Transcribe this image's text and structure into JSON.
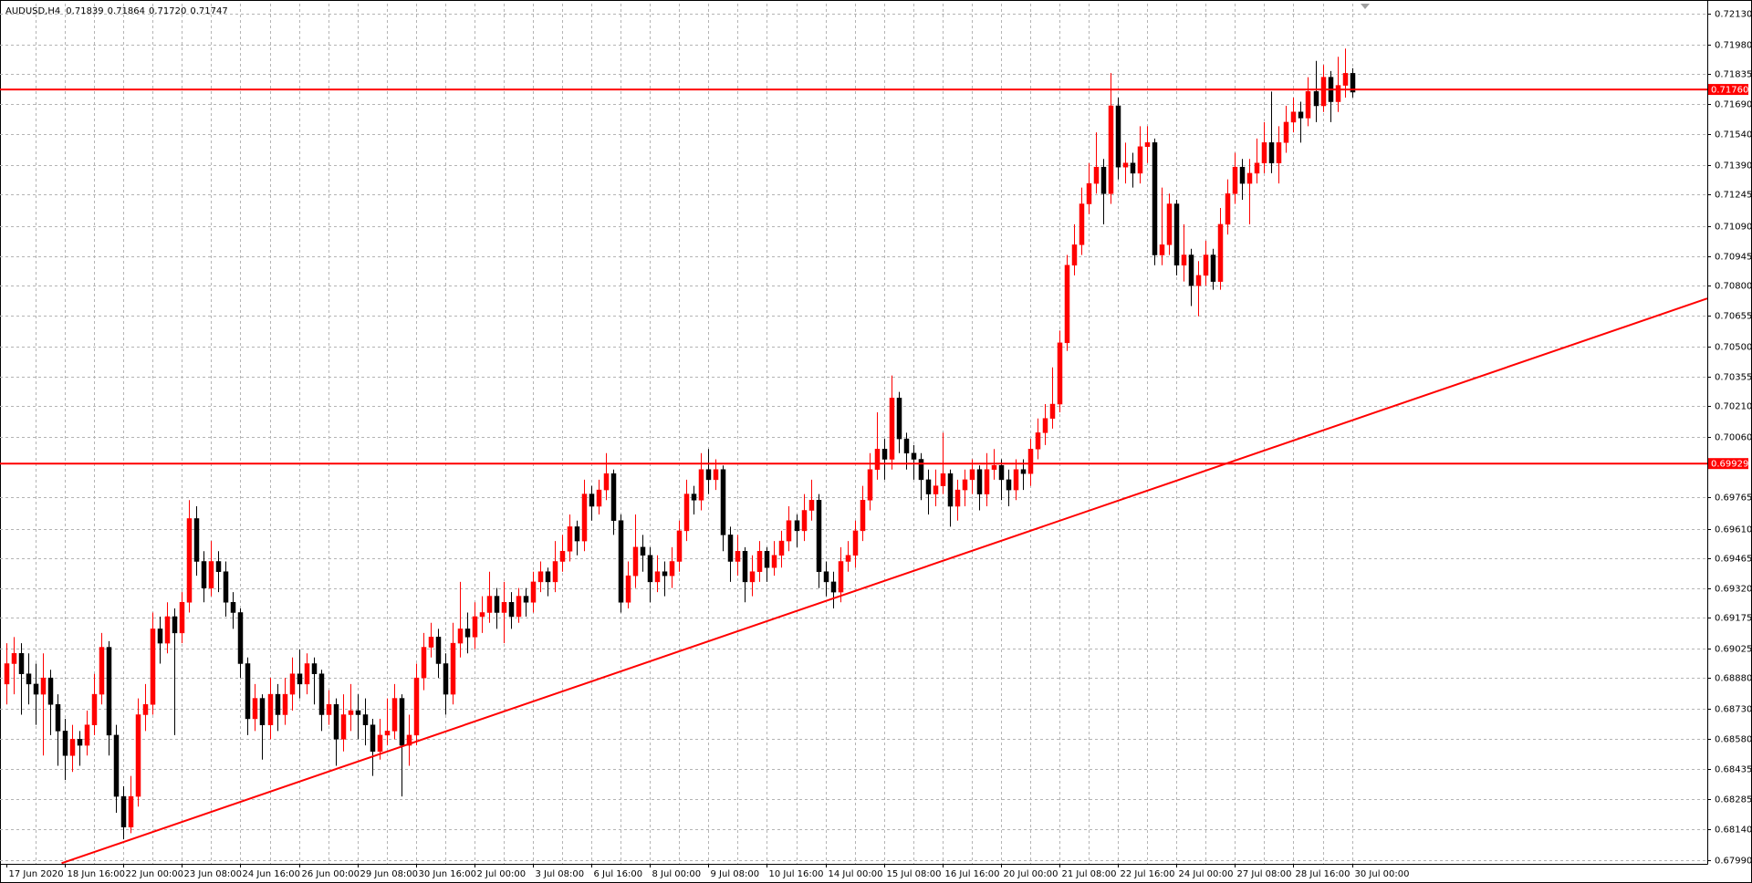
{
  "chart_data": {
    "type": "candlestick",
    "symbol": "AUDUSD,H4",
    "header_labels": [
      "0.71839",
      "0.71864",
      "0.71720",
      "0.71747"
    ],
    "up_color": "#ff0000",
    "down_color": "#000000",
    "grid": true,
    "ylim": [
      0.6797,
      0.7218
    ],
    "yticks": [
      {
        "value": 0.7213,
        "label": "0.72130"
      },
      {
        "value": 0.7198,
        "label": "0.71980"
      },
      {
        "value": 0.71835,
        "label": "0.71835"
      },
      {
        "value": 0.7169,
        "label": "0.71690"
      },
      {
        "value": 0.7154,
        "label": "0.71540"
      },
      {
        "value": 0.7139,
        "label": "0.71390"
      },
      {
        "value": 0.71245,
        "label": "0.71245"
      },
      {
        "value": 0.7109,
        "label": "0.71090"
      },
      {
        "value": 0.70945,
        "label": "0.70945"
      },
      {
        "value": 0.708,
        "label": "0.70800"
      },
      {
        "value": 0.70655,
        "label": "0.70655"
      },
      {
        "value": 0.705,
        "label": "0.70500"
      },
      {
        "value": 0.70355,
        "label": "0.70355"
      },
      {
        "value": 0.7021,
        "label": "0.70210"
      },
      {
        "value": 0.7006,
        "label": "0.70060"
      },
      {
        "value": 0.69765,
        "label": "0.69765"
      },
      {
        "value": 0.6961,
        "label": "0.69610"
      },
      {
        "value": 0.69465,
        "label": "0.69465"
      },
      {
        "value": 0.6932,
        "label": "0.69320"
      },
      {
        "value": 0.69175,
        "label": "0.69175"
      },
      {
        "value": 0.69025,
        "label": "0.69025"
      },
      {
        "value": 0.6888,
        "label": "0.68880"
      },
      {
        "value": 0.6873,
        "label": "0.68730"
      },
      {
        "value": 0.6858,
        "label": "0.68580"
      },
      {
        "value": 0.68435,
        "label": "0.68435"
      },
      {
        "value": 0.68285,
        "label": "0.68285"
      },
      {
        "value": 0.6814,
        "label": "0.68140"
      },
      {
        "value": 0.6799,
        "label": "0.67990"
      }
    ],
    "levels": [
      {
        "value": 0.7176,
        "label": "0.71760",
        "color": "#ff0000"
      },
      {
        "value": 0.69929,
        "label": "0.69929",
        "color": "#ff0000"
      }
    ],
    "trendline": {
      "start": [
        7.55,
        0.67973
      ],
      "end": [
        232.9,
        0.70737
      ],
      "color": "#ff0000"
    },
    "categories": [
      "17 Jun 2020",
      null,
      null,
      null,
      null,
      null,
      null,
      null,
      "18 Jun 16:00",
      null,
      null,
      null,
      null,
      null,
      null,
      null,
      "22 Jun 00:00",
      null,
      null,
      null,
      null,
      null,
      null,
      null,
      "23 Jun 08:00",
      null,
      null,
      null,
      null,
      null,
      null,
      null,
      "24 Jun 16:00",
      null,
      null,
      null,
      null,
      null,
      null,
      null,
      "26 Jun 00:00",
      null,
      null,
      null,
      null,
      null,
      null,
      null,
      "29 Jun 08:00",
      null,
      null,
      null,
      null,
      null,
      null,
      null,
      "30 Jun 16:00",
      null,
      null,
      null,
      null,
      null,
      null,
      null,
      "2 Jul 00:00",
      null,
      null,
      null,
      null,
      null,
      null,
      null,
      "3 Jul 08:00",
      null,
      null,
      null,
      null,
      null,
      null,
      null,
      "6 Jul 16:00",
      null,
      null,
      null,
      null,
      null,
      null,
      null,
      "8 Jul 00:00",
      null,
      null,
      null,
      null,
      null,
      null,
      null,
      "9 Jul 08:00",
      null,
      null,
      null,
      null,
      null,
      null,
      null,
      "10 Jul 16:00",
      null,
      null,
      null,
      null,
      null,
      null,
      null,
      "14 Jul 00:00",
      null,
      null,
      null,
      null,
      null,
      null,
      null,
      "15 Jul 08:00",
      null,
      null,
      null,
      null,
      null,
      null,
      null,
      "16 Jul 16:00",
      null,
      null,
      null,
      null,
      null,
      null,
      null,
      "20 Jul 00:00",
      null,
      null,
      null,
      null,
      null,
      null,
      null,
      "21 Jul 08:00",
      null,
      null,
      null,
      null,
      null,
      null,
      null,
      "22 Jul 16:00",
      null,
      null,
      null,
      null,
      null,
      null,
      null,
      "24 Jul 00:00",
      null,
      null,
      null,
      null,
      null,
      null,
      null,
      "27 Jul 08:00",
      null,
      null,
      null,
      null,
      null,
      null,
      null,
      "28 Jul 16:00",
      null,
      null,
      null,
      null,
      null,
      null,
      null,
      "30 Jul 00:00"
    ],
    "candles": [
      [
        0.6885,
        0.6905,
        0.6875,
        0.6895
      ],
      [
        0.6895,
        0.6908,
        0.688,
        0.69
      ],
      [
        0.69,
        0.6905,
        0.687,
        0.689
      ],
      [
        0.689,
        0.69,
        0.6875,
        0.6885
      ],
      [
        0.6885,
        0.6895,
        0.6865,
        0.688
      ],
      [
        0.688,
        0.69,
        0.685,
        0.6888
      ],
      [
        0.6888,
        0.6892,
        0.686,
        0.6875
      ],
      [
        0.6875,
        0.688,
        0.6845,
        0.6862
      ],
      [
        0.6862,
        0.6868,
        0.6838,
        0.685
      ],
      [
        0.685,
        0.6865,
        0.6842,
        0.6858
      ],
      [
        0.6858,
        0.6862,
        0.6845,
        0.6855
      ],
      [
        0.6855,
        0.6872,
        0.685,
        0.6865
      ],
      [
        0.6865,
        0.689,
        0.686,
        0.688
      ],
      [
        0.688,
        0.691,
        0.6875,
        0.6903
      ],
      [
        0.6903,
        0.6906,
        0.685,
        0.686
      ],
      [
        0.686,
        0.6865,
        0.6822,
        0.683
      ],
      [
        0.683,
        0.6835,
        0.6809,
        0.6815
      ],
      [
        0.6815,
        0.684,
        0.6812,
        0.683
      ],
      [
        0.683,
        0.6878,
        0.6825,
        0.687
      ],
      [
        0.687,
        0.6885,
        0.6862,
        0.6875
      ],
      [
        0.6875,
        0.692,
        0.687,
        0.6912
      ],
      [
        0.6912,
        0.6918,
        0.6895,
        0.6905
      ],
      [
        0.6905,
        0.6925,
        0.69,
        0.6918
      ],
      [
        0.6918,
        0.6922,
        0.686,
        0.691
      ],
      [
        0.691,
        0.693,
        0.6905,
        0.6925
      ],
      [
        0.6925,
        0.6975,
        0.692,
        0.6966
      ],
      [
        0.6966,
        0.6972,
        0.6938,
        0.6945
      ],
      [
        0.6945,
        0.695,
        0.6925,
        0.6932
      ],
      [
        0.6932,
        0.6955,
        0.6928,
        0.6945
      ],
      [
        0.6945,
        0.695,
        0.693,
        0.694
      ],
      [
        0.694,
        0.6945,
        0.6918,
        0.6925
      ],
      [
        0.6925,
        0.693,
        0.6912,
        0.692
      ],
      [
        0.692,
        0.6922,
        0.6888,
        0.6895
      ],
      [
        0.6895,
        0.6898,
        0.686,
        0.6868
      ],
      [
        0.6868,
        0.6885,
        0.6862,
        0.6878
      ],
      [
        0.6878,
        0.688,
        0.6848,
        0.6865
      ],
      [
        0.6865,
        0.6888,
        0.6858,
        0.688
      ],
      [
        0.688,
        0.6885,
        0.6862,
        0.687
      ],
      [
        0.687,
        0.6888,
        0.6865,
        0.688
      ],
      [
        0.688,
        0.6898,
        0.6872,
        0.689
      ],
      [
        0.689,
        0.6902,
        0.6878,
        0.6885
      ],
      [
        0.6885,
        0.69,
        0.688,
        0.6895
      ],
      [
        0.6895,
        0.6898,
        0.6875,
        0.689
      ],
      [
        0.689,
        0.6892,
        0.6862,
        0.687
      ],
      [
        0.687,
        0.6882,
        0.6865,
        0.6875
      ],
      [
        0.6875,
        0.6878,
        0.6845,
        0.6858
      ],
      [
        0.6858,
        0.688,
        0.6852,
        0.687
      ],
      [
        0.687,
        0.6885,
        0.6862,
        0.6872
      ],
      [
        0.6872,
        0.688,
        0.6858,
        0.687
      ],
      [
        0.687,
        0.6878,
        0.6855,
        0.6865
      ],
      [
        0.6865,
        0.6868,
        0.684,
        0.6852
      ],
      [
        0.6852,
        0.6868,
        0.6848,
        0.686
      ],
      [
        0.686,
        0.6878,
        0.6855,
        0.6862
      ],
      [
        0.6862,
        0.6885,
        0.6858,
        0.6878
      ],
      [
        0.6878,
        0.688,
        0.683,
        0.6855
      ],
      [
        0.6855,
        0.687,
        0.6845,
        0.686
      ],
      [
        0.686,
        0.6895,
        0.6855,
        0.6888
      ],
      [
        0.6888,
        0.691,
        0.6882,
        0.6903
      ],
      [
        0.6903,
        0.6915,
        0.6898,
        0.6908
      ],
      [
        0.6908,
        0.6912,
        0.6888,
        0.6895
      ],
      [
        0.6895,
        0.69,
        0.687,
        0.688
      ],
      [
        0.688,
        0.6915,
        0.6875,
        0.6905
      ],
      [
        0.6905,
        0.6935,
        0.6898,
        0.6912
      ],
      [
        0.6912,
        0.692,
        0.69,
        0.6908
      ],
      [
        0.6908,
        0.6925,
        0.6902,
        0.6918
      ],
      [
        0.6918,
        0.6928,
        0.691,
        0.692
      ],
      [
        0.692,
        0.694,
        0.6915,
        0.6928
      ],
      [
        0.6928,
        0.6932,
        0.6912,
        0.692
      ],
      [
        0.692,
        0.6935,
        0.6905,
        0.6925
      ],
      [
        0.6925,
        0.693,
        0.6912,
        0.6918
      ],
      [
        0.6918,
        0.6932,
        0.6915,
        0.6928
      ],
      [
        0.6928,
        0.6932,
        0.6918,
        0.6925
      ],
      [
        0.6925,
        0.694,
        0.692,
        0.6935
      ],
      [
        0.6935,
        0.6945,
        0.693,
        0.694
      ],
      [
        0.694,
        0.6942,
        0.6928,
        0.6935
      ],
      [
        0.6935,
        0.6955,
        0.693,
        0.6945
      ],
      [
        0.6945,
        0.6958,
        0.694,
        0.695
      ],
      [
        0.695,
        0.6968,
        0.6945,
        0.6962
      ],
      [
        0.6962,
        0.6965,
        0.6948,
        0.6955
      ],
      [
        0.6955,
        0.6985,
        0.695,
        0.6978
      ],
      [
        0.6978,
        0.6982,
        0.6965,
        0.6972
      ],
      [
        0.6972,
        0.6985,
        0.6968,
        0.698
      ],
      [
        0.698,
        0.6998,
        0.6975,
        0.6988
      ],
      [
        0.6988,
        0.699,
        0.6958,
        0.6965
      ],
      [
        0.6965,
        0.6968,
        0.692,
        0.6925
      ],
      [
        0.6925,
        0.6945,
        0.6922,
        0.6938
      ],
      [
        0.6938,
        0.6968,
        0.6932,
        0.6952
      ],
      [
        0.6952,
        0.6958,
        0.694,
        0.6948
      ],
      [
        0.6948,
        0.6952,
        0.6925,
        0.6935
      ],
      [
        0.6935,
        0.6948,
        0.693,
        0.694
      ],
      [
        0.694,
        0.6945,
        0.6928,
        0.6938
      ],
      [
        0.6938,
        0.6952,
        0.6932,
        0.6945
      ],
      [
        0.6945,
        0.6965,
        0.694,
        0.696
      ],
      [
        0.696,
        0.6985,
        0.6955,
        0.6978
      ],
      [
        0.6978,
        0.6982,
        0.6968,
        0.6975
      ],
      [
        0.6975,
        0.6998,
        0.697,
        0.699
      ],
      [
        0.699,
        0.7,
        0.6978,
        0.6985
      ],
      [
        0.6985,
        0.6995,
        0.698,
        0.699
      ],
      [
        0.699,
        0.6992,
        0.695,
        0.6958
      ],
      [
        0.6958,
        0.6962,
        0.6935,
        0.6945
      ],
      [
        0.6945,
        0.6958,
        0.6938,
        0.695
      ],
      [
        0.695,
        0.6952,
        0.6925,
        0.6935
      ],
      [
        0.6935,
        0.6948,
        0.6928,
        0.694
      ],
      [
        0.694,
        0.6955,
        0.6935,
        0.695
      ],
      [
        0.695,
        0.6952,
        0.6935,
        0.6942
      ],
      [
        0.6942,
        0.6955,
        0.6938,
        0.6948
      ],
      [
        0.6948,
        0.696,
        0.6942,
        0.6955
      ],
      [
        0.6955,
        0.6972,
        0.695,
        0.6965
      ],
      [
        0.6965,
        0.6968,
        0.6952,
        0.696
      ],
      [
        0.696,
        0.6978,
        0.6955,
        0.697
      ],
      [
        0.697,
        0.6985,
        0.6965,
        0.6975
      ],
      [
        0.6975,
        0.6978,
        0.6932,
        0.694
      ],
      [
        0.694,
        0.6945,
        0.6928,
        0.6935
      ],
      [
        0.6935,
        0.694,
        0.6922,
        0.693
      ],
      [
        0.693,
        0.6952,
        0.6925,
        0.6945
      ],
      [
        0.6945,
        0.6955,
        0.694,
        0.6948
      ],
      [
        0.6948,
        0.6965,
        0.6942,
        0.696
      ],
      [
        0.696,
        0.6982,
        0.6955,
        0.6975
      ],
      [
        0.6975,
        0.6998,
        0.697,
        0.699
      ],
      [
        0.699,
        0.7018,
        0.6985,
        0.7
      ],
      [
        0.7,
        0.7005,
        0.6985,
        0.6995
      ],
      [
        0.6995,
        0.7036,
        0.699,
        0.7025
      ],
      [
        0.7025,
        0.7028,
        0.6998,
        0.7005
      ],
      [
        0.7005,
        0.7008,
        0.699,
        0.6998
      ],
      [
        0.6998,
        0.7002,
        0.6985,
        0.6995
      ],
      [
        0.6995,
        0.6998,
        0.6975,
        0.6985
      ],
      [
        0.6985,
        0.699,
        0.6968,
        0.6978
      ],
      [
        0.6978,
        0.699,
        0.6972,
        0.6982
      ],
      [
        0.6982,
        0.7008,
        0.6978,
        0.6988
      ],
      [
        0.6988,
        0.699,
        0.6962,
        0.6972
      ],
      [
        0.6972,
        0.6985,
        0.6965,
        0.698
      ],
      [
        0.698,
        0.699,
        0.6972,
        0.6985
      ],
      [
        0.6985,
        0.6995,
        0.6978,
        0.699
      ],
      [
        0.699,
        0.6992,
        0.697,
        0.6978
      ],
      [
        0.6978,
        0.6998,
        0.6972,
        0.699
      ],
      [
        0.699,
        0.7,
        0.6985,
        0.6992
      ],
      [
        0.6992,
        0.6995,
        0.6975,
        0.6985
      ],
      [
        0.6985,
        0.699,
        0.6972,
        0.698
      ],
      [
        0.698,
        0.6995,
        0.6975,
        0.699
      ],
      [
        0.699,
        0.6995,
        0.698,
        0.6988
      ],
      [
        0.6988,
        0.7005,
        0.6982,
        0.7
      ],
      [
        0.7,
        0.7015,
        0.6995,
        0.7008
      ],
      [
        0.7008,
        0.7022,
        0.7002,
        0.7015
      ],
      [
        0.7015,
        0.704,
        0.701,
        0.7022
      ],
      [
        0.7022,
        0.7058,
        0.7018,
        0.7052
      ],
      [
        0.7052,
        0.7095,
        0.7048,
        0.709
      ],
      [
        0.709,
        0.711,
        0.7085,
        0.71
      ],
      [
        0.71,
        0.7128,
        0.7095,
        0.712
      ],
      [
        0.712,
        0.714,
        0.7115,
        0.713
      ],
      [
        0.713,
        0.7155,
        0.7125,
        0.7138
      ],
      [
        0.7138,
        0.7142,
        0.711,
        0.7125
      ],
      [
        0.7125,
        0.7184,
        0.712,
        0.7168
      ],
      [
        0.7168,
        0.7172,
        0.7132,
        0.7138
      ],
      [
        0.7138,
        0.715,
        0.713,
        0.714
      ],
      [
        0.714,
        0.7145,
        0.7128,
        0.7135
      ],
      [
        0.7135,
        0.7158,
        0.713,
        0.7148
      ],
      [
        0.7148,
        0.7158,
        0.714,
        0.715
      ],
      [
        0.715,
        0.7152,
        0.709,
        0.7095
      ],
      [
        0.7095,
        0.7128,
        0.709,
        0.71
      ],
      [
        0.71,
        0.7125,
        0.7095,
        0.712
      ],
      [
        0.712,
        0.7122,
        0.7085,
        0.709
      ],
      [
        0.709,
        0.711,
        0.7082,
        0.7095
      ],
      [
        0.7095,
        0.7098,
        0.707,
        0.708
      ],
      [
        0.708,
        0.7092,
        0.7065,
        0.7085
      ],
      [
        0.7085,
        0.7102,
        0.708,
        0.7095
      ],
      [
        0.7095,
        0.7098,
        0.7078,
        0.7082
      ],
      [
        0.7082,
        0.7118,
        0.7078,
        0.711
      ],
      [
        0.711,
        0.7132,
        0.7105,
        0.7125
      ],
      [
        0.7125,
        0.7145,
        0.712,
        0.7138
      ],
      [
        0.7138,
        0.7142,
        0.7122,
        0.713
      ],
      [
        0.713,
        0.7142,
        0.711,
        0.7135
      ],
      [
        0.7135,
        0.7152,
        0.713,
        0.714
      ],
      [
        0.714,
        0.716,
        0.7135,
        0.715
      ],
      [
        0.715,
        0.7175,
        0.7135,
        0.714
      ],
      [
        0.714,
        0.7158,
        0.713,
        0.715
      ],
      [
        0.715,
        0.7168,
        0.7145,
        0.716
      ],
      [
        0.716,
        0.7172,
        0.7155,
        0.7165
      ],
      [
        0.7165,
        0.717,
        0.715,
        0.7162
      ],
      [
        0.7162,
        0.7182,
        0.7158,
        0.7175
      ],
      [
        0.7175,
        0.719,
        0.716,
        0.7168
      ],
      [
        0.7168,
        0.7188,
        0.7165,
        0.7182
      ],
      [
        0.7182,
        0.7185,
        0.716,
        0.717
      ],
      [
        0.717,
        0.7192,
        0.7165,
        0.7178
      ],
      [
        0.7178,
        0.7196,
        0.7172,
        0.71839
      ],
      [
        0.71839,
        0.71864,
        0.7172,
        0.71747
      ]
    ]
  }
}
